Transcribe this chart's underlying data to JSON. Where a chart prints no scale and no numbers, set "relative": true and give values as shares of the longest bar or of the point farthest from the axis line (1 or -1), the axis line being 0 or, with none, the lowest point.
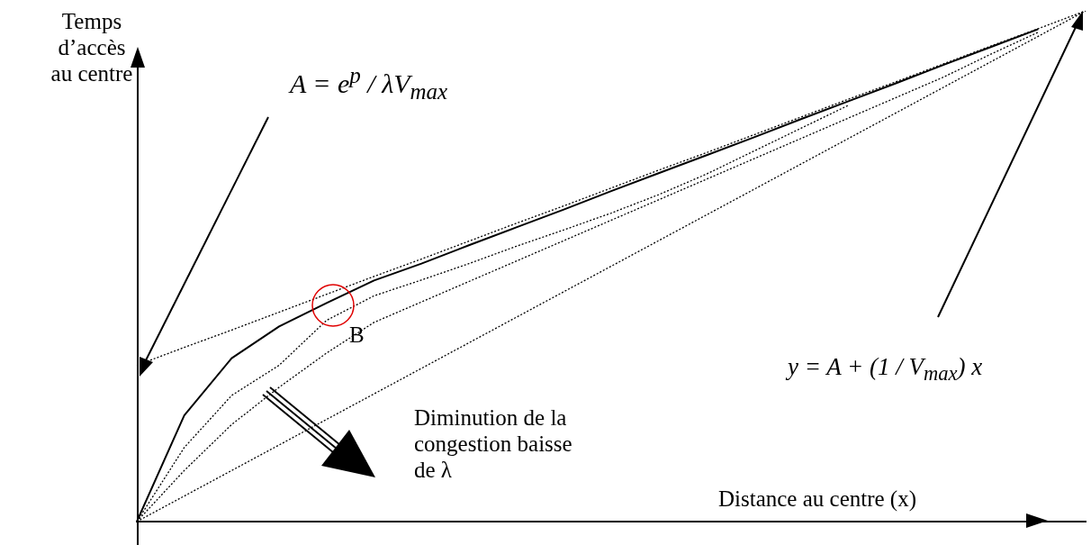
{
  "chart_data": {
    "type": "line",
    "relative": true,
    "xlabel": "Distance au centre (x)",
    "ylabel": "Temps d’accès au centre",
    "categories": [
      null,
      null,
      null,
      null,
      null,
      null,
      null,
      null,
      null,
      null,
      null,
      null,
      null,
      null,
      null,
      null,
      null,
      null,
      null,
      null,
      null
    ],
    "series": [
      {
        "color": "#000000",
        "line_style": "solid",
        "values": [
          0,
          0.208,
          0.32,
          0.382,
          0.428,
          0.472,
          0.505,
          0.541,
          0.576,
          0.611,
          0.647,
          0.682,
          0.717,
          0.752,
          0.788,
          0.823,
          0.858,
          0.894,
          0.929,
          0.964,
          null
        ]
      },
      {
        "color": "#000000",
        "line_style": "dotted",
        "values": [
          0.306,
          0.341,
          0.375,
          0.41,
          0.445,
          0.48,
          0.514,
          0.549,
          0.584,
          0.618,
          0.653,
          0.688,
          0.722,
          0.757,
          0.792,
          0.827,
          0.861,
          0.896,
          0.931,
          0.965,
          1
        ]
      },
      {
        "color": "#000000",
        "line_style": "dotted",
        "values": [
          0,
          0.145,
          0.247,
          0.306,
          0.394,
          0.442,
          0.473,
          0.505,
          0.539,
          0.571,
          0.604,
          0.64,
          0.68,
          0.725,
          0.77,
          0.815,
          null,
          null,
          null,
          null,
          null
        ]
      },
      {
        "color": "#000000",
        "line_style": "dotted",
        "values": [
          0,
          0.1,
          0.19,
          0.263,
          0.33,
          0.39,
          0.43,
          0.47,
          0.51,
          0.55,
          0.59,
          0.63,
          0.67,
          0.71,
          0.75,
          0.79,
          0.83,
          0.87,
          0.915,
          0.958,
          null
        ]
      },
      {
        "color": "#000000",
        "line_style": "dotted",
        "values": [
          0,
          0.05,
          0.1,
          0.15,
          0.2,
          0.25,
          0.3,
          0.35,
          0.4,
          0.45,
          0.5,
          0.55,
          0.6,
          0.65,
          0.7,
          0.75,
          0.8,
          0.85,
          0.9,
          0.95,
          1
        ]
      }
    ],
    "annotations": [
      "A = e$^{p}$ / λV$_{max}$",
      "B",
      "Diminution de la congestion baisse de λ",
      "y = A + (1 / V$_{max}$) x"
    ],
    "legend": false,
    "grid": false,
    "marker": "none"
  }
}
